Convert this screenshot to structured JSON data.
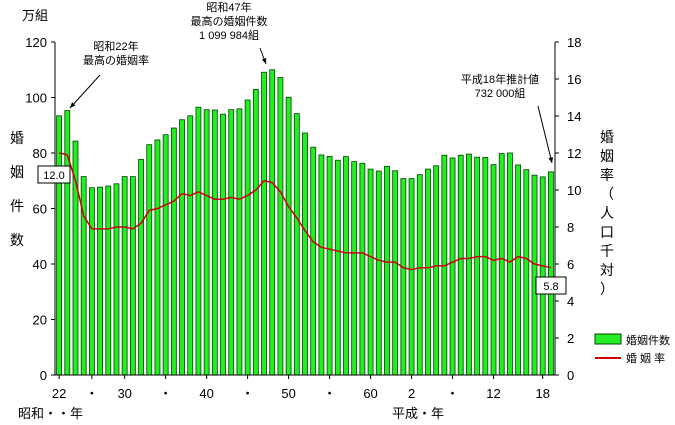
{
  "chart_data": {
    "type": "bar",
    "left_axis": {
      "unit": "万組",
      "ticks": [
        "0",
        "20",
        "40",
        "60",
        "80",
        "100",
        "120"
      ],
      "ylim": [
        0,
        120
      ],
      "title_chars": [
        "婚",
        "姻",
        "件",
        "数"
      ]
    },
    "right_axis": {
      "ticks": [
        "0",
        "2",
        "4",
        "6",
        "8",
        "10",
        "12",
        "14",
        "16",
        "18"
      ],
      "ylim": [
        0,
        18
      ],
      "title_chars": [
        "婚",
        "姻",
        "率",
        "（",
        "人",
        "口",
        "千",
        "対",
        "）"
      ]
    },
    "x_tick_labels": [
      "22",
      "・",
      "30",
      "・",
      "40",
      "・",
      "50",
      "・",
      "60",
      "2",
      "・",
      "12",
      "18"
    ],
    "era_labels": {
      "showa": "昭和・・年",
      "heisei": "平成・年"
    },
    "legend": [
      "婚姻件数",
      "婚 姻 率"
    ],
    "colors": {
      "bar_fill": "#22ee22",
      "bar_stroke": "#004400",
      "line": "#cc0000"
    },
    "annotations": [
      {
        "lines": [
          "昭和22年",
          "最高の婚姻率"
        ]
      },
      {
        "lines": [
          "昭和47年",
          "最高の婚姻件数",
          "1 099 984組"
        ]
      },
      {
        "lines": [
          "平成18年推計値",
          "732 000組"
        ]
      }
    ],
    "boxed_values": {
      "start_rate": "12.0",
      "end_rate": "5.8"
    },
    "series": [
      {
        "name": "婚姻件数",
        "values": [
          93.4,
          95.3,
          84.3,
          71.5,
          67.5,
          67.7,
          68.1,
          68.9,
          71.5,
          71.5,
          77.7,
          83.0,
          84.7,
          86.6,
          89.0,
          92.0,
          93.4,
          96.5,
          95.6,
          95.5,
          94.0,
          95.6,
          95.9,
          99.1,
          102.9,
          109.1,
          110.0,
          107.2,
          100.1,
          94.2,
          87.2,
          82.1,
          79.3,
          78.8,
          77.4,
          78.7,
          76.9,
          76.3,
          74.2,
          73.5,
          75.2,
          73.6,
          70.8,
          70.8,
          72.2,
          74.2,
          75.4,
          79.2,
          78.2,
          79.2,
          79.6,
          78.5,
          78.4,
          75.8,
          79.8,
          80.0,
          75.7,
          74.0,
          72.0,
          71.4,
          73.2
        ]
      },
      {
        "name": "婚 姻 率",
        "values": [
          12.0,
          11.9,
          10.5,
          8.6,
          7.9,
          7.9,
          7.9,
          8.0,
          8.0,
          7.9,
          8.2,
          8.9,
          9.0,
          9.2,
          9.4,
          9.8,
          9.7,
          9.9,
          9.7,
          9.5,
          9.5,
          9.6,
          9.5,
          9.7,
          10.0,
          10.5,
          10.4,
          9.9,
          9.1,
          8.5,
          7.8,
          7.2,
          6.9,
          6.8,
          6.7,
          6.6,
          6.6,
          6.6,
          6.4,
          6.2,
          6.1,
          6.1,
          5.8,
          5.7,
          5.8,
          5.8,
          5.9,
          5.9,
          6.1,
          6.3,
          6.3,
          6.4,
          6.4,
          6.2,
          6.3,
          6.1,
          6.4,
          6.3,
          6.0,
          5.9,
          5.8
        ]
      }
    ]
  }
}
